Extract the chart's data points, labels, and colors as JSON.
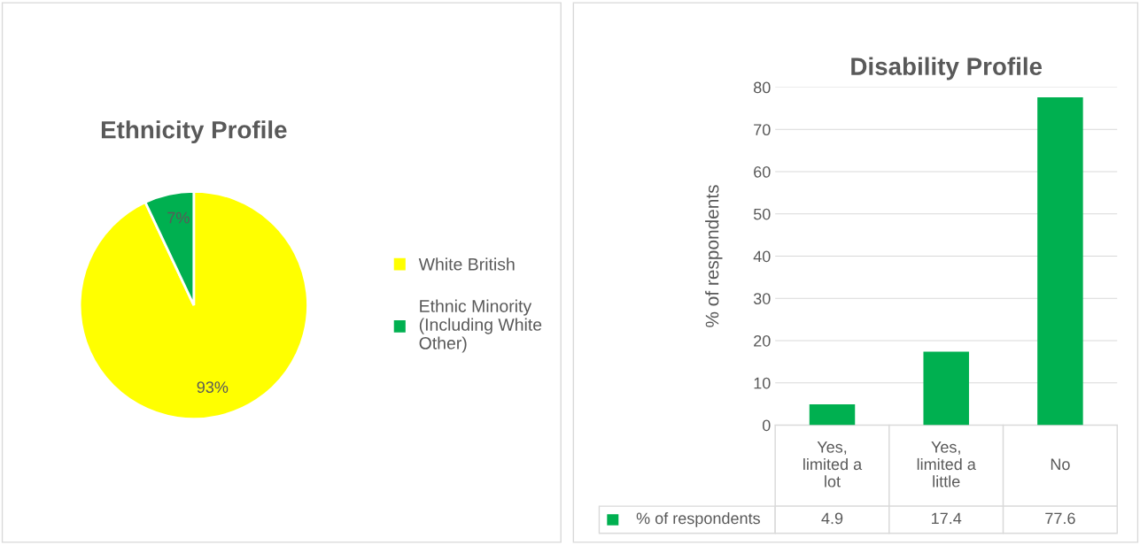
{
  "chart_data": [
    {
      "type": "pie",
      "title": "Ethnicity Profile",
      "categories": [
        "White British",
        "Ethnic Minority (Including White Other)"
      ],
      "values": [
        93,
        7
      ],
      "colors": [
        "#ffff00",
        "#00b050"
      ],
      "value_labels": [
        "93%",
        "7%"
      ],
      "legend": "right"
    },
    {
      "type": "bar",
      "title": "Disability Profile",
      "ylabel": "% of respondents",
      "categories": [
        "Yes, limited a lot",
        "Yes, limited a little",
        "No"
      ],
      "series": [
        {
          "name": "% of respondents",
          "color": "#00b050",
          "values": [
            4.9,
            17.4,
            77.6
          ]
        }
      ],
      "ylim": [
        0,
        80
      ],
      "yticks": [
        0,
        10,
        20,
        30,
        40,
        50,
        60,
        70,
        80
      ],
      "grid": "y",
      "data_labels": true
    }
  ]
}
